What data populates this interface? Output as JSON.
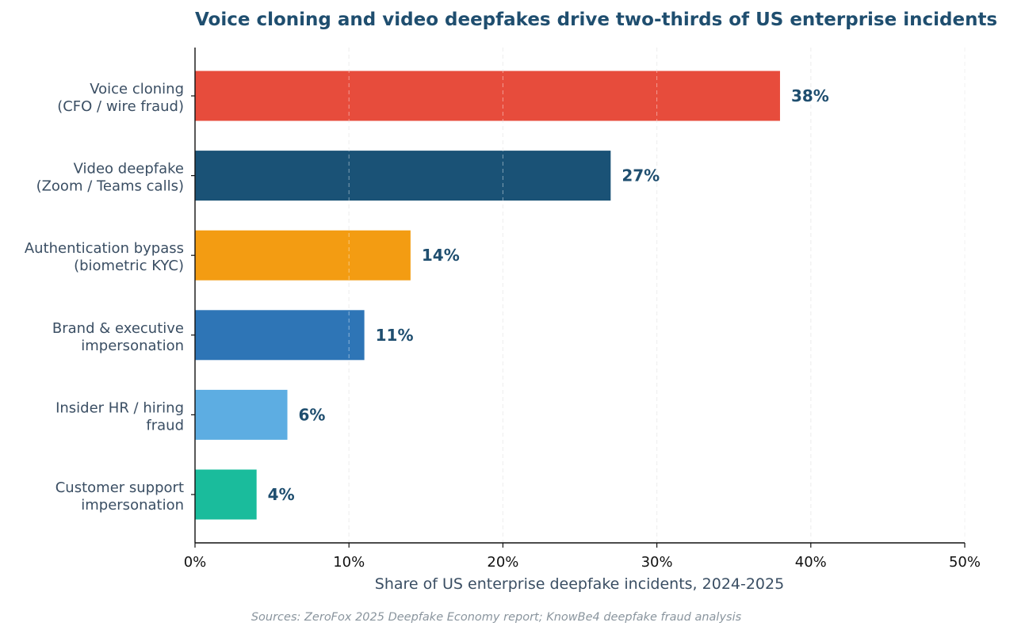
{
  "chart_data": {
    "type": "bar",
    "orientation": "horizontal",
    "title": "Voice cloning and video deepfakes drive two-thirds of US enterprise incidents",
    "xlabel": "Share of US enterprise deepfake incidents, 2024-2025",
    "ylabel": "",
    "xlim": [
      0,
      50
    ],
    "x_ticks": [
      0,
      10,
      20,
      30,
      40,
      50
    ],
    "x_tick_labels": [
      "0%",
      "10%",
      "20%",
      "30%",
      "40%",
      "50%"
    ],
    "grid": "vertical dashed",
    "categories": [
      [
        "Voice cloning",
        "(CFO / wire fraud)"
      ],
      [
        "Video deepfake",
        "(Zoom / Teams calls)"
      ],
      [
        "Authentication bypass",
        "(biometric KYC)"
      ],
      [
        "Brand & executive",
        "impersonation"
      ],
      [
        "Insider HR / hiring",
        "fraud"
      ],
      [
        "Customer support",
        "impersonation"
      ]
    ],
    "values": [
      38,
      27,
      14,
      11,
      6,
      4
    ],
    "data_labels": [
      "38%",
      "27%",
      "14%",
      "11%",
      "6%",
      "4%"
    ],
    "colors": [
      "#e74c3c",
      "#1a5276",
      "#f39c12",
      "#2e75b6",
      "#5dade2",
      "#1abc9c"
    ],
    "source": "Sources: ZeroFox 2025 Deepfake Economy report; KnowBe4 deepfake fraud analysis"
  }
}
